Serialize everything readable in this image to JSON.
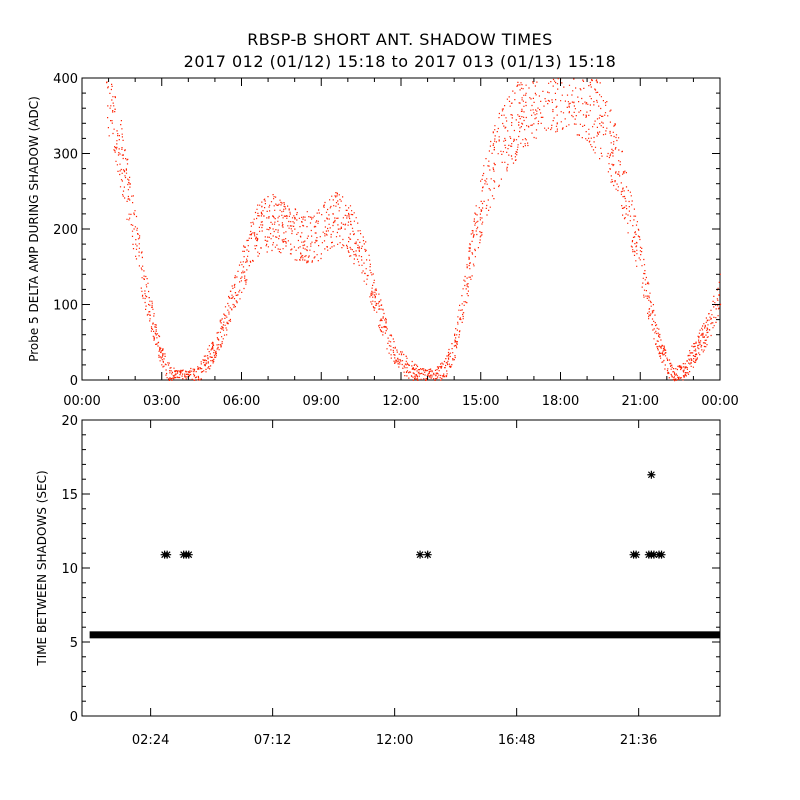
{
  "title_line1": "RBSP-B SHORT ANT. SHADOW TIMES",
  "title_line2": "2017 012 (01/12) 15:18 to 2017 013 (01/13) 15:18",
  "chart_data": [
    {
      "type": "scatter",
      "ylabel": "Probe 5 DELTA AMP DURING SHADOW (ADC)",
      "xlim_hours": [
        0,
        24
      ],
      "ylim": [
        0,
        400
      ],
      "xticks": [
        "00:00",
        "03:00",
        "06:00",
        "09:00",
        "12:00",
        "15:00",
        "18:00",
        "21:00",
        "00:00"
      ],
      "yticks": [
        "0",
        "100",
        "200",
        "300",
        "400"
      ],
      "marker_color": "#ff2000",
      "envelope": {
        "x": [
          0.9,
          1.0,
          1.2,
          1.4,
          1.6,
          1.8,
          2.0,
          2.2,
          2.4,
          2.6,
          2.8,
          3.0,
          3.2,
          3.5,
          3.8,
          4.0,
          4.3,
          4.6,
          5.0,
          5.4,
          5.8,
          6.2,
          6.5,
          6.8,
          7.2,
          7.6,
          8.0,
          8.5,
          9.0,
          9.3,
          9.6,
          9.9,
          10.3,
          10.7,
          11.0,
          11.3,
          11.6,
          12.0,
          12.4,
          12.7,
          13.0,
          13.3,
          13.6,
          14.0,
          14.4,
          14.8,
          15.2,
          15.6,
          16.0,
          16.5,
          17.0,
          17.5,
          18.0,
          18.5,
          19.0,
          19.5,
          20.0,
          20.4,
          20.8,
          21.2,
          21.6,
          22.0,
          22.3,
          22.6,
          23.0,
          23.4,
          23.8,
          24.0
        ],
        "y": [
          400,
          380,
          350,
          310,
          270,
          230,
          190,
          150,
          115,
          85,
          55,
          30,
          12,
          4,
          2,
          3,
          6,
          20,
          45,
          80,
          120,
          165,
          195,
          205,
          210,
          200,
          195,
          190,
          195,
          210,
          215,
          205,
          185,
          150,
          110,
          75,
          45,
          25,
          12,
          4,
          2,
          5,
          12,
          45,
          120,
          200,
          260,
          300,
          330,
          355,
          375,
          385,
          390,
          385,
          370,
          340,
          300,
          250,
          190,
          120,
          60,
          18,
          5,
          12,
          35,
          60,
          95,
          120
        ]
      }
    },
    {
      "type": "scatter",
      "ylabel": "TIME BETWEEN SHADOWS (SEC)",
      "xlim_hours": [
        -0.3,
        24.8
      ],
      "ylim": [
        0,
        20
      ],
      "xticks": [
        2.4,
        7.2,
        12.0,
        16.8,
        21.6
      ],
      "xtick_labels": [
        "02:24",
        "07:12",
        "12:00",
        "16:48",
        "21:36"
      ],
      "yticks": [
        "0",
        "5",
        "10",
        "15",
        "20"
      ],
      "baseline": {
        "x_start": 0.0,
        "x_end": 24.8,
        "y": 5.45
      },
      "outliers": {
        "x": [
          2.95,
          3.05,
          3.7,
          3.8,
          3.9,
          13.0,
          13.3,
          21.4,
          21.5,
          22.0,
          22.1,
          22.2,
          22.4,
          22.5
        ],
        "y": [
          10.9,
          10.9,
          10.9,
          10.9,
          10.9,
          10.9,
          10.9,
          10.9,
          10.9,
          10.9,
          10.9,
          10.9,
          10.9,
          10.9
        ]
      },
      "high_outlier": {
        "x": 22.1,
        "y": 16.3
      },
      "marker_color": "#000000"
    }
  ]
}
